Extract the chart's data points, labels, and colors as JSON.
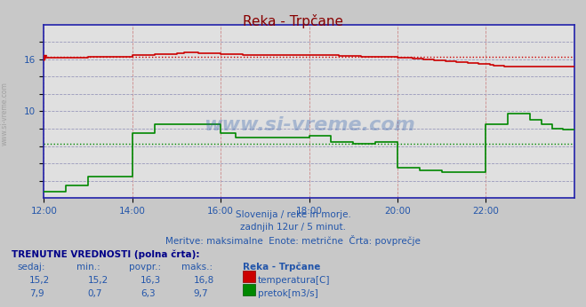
{
  "title": "Reka - Trpčane",
  "bg_color": "#c8c8c8",
  "plot_bg_color": "#e0e0e0",
  "title_color": "#880000",
  "axis_color": "#2222aa",
  "grid_color_v": "#cc8888",
  "grid_color_h": "#9999bb",
  "temp_color": "#cc0000",
  "flow_color": "#008800",
  "avg_temp_color": "#cc0000",
  "avg_flow_color": "#008800",
  "text_color": "#2255aa",
  "watermark": "www.si-vreme.com",
  "watermark_color": "#2255aa",
  "subtitle1": "Slovenija / reke in morje.",
  "subtitle2": "zadnjih 12ur / 5 minut.",
  "subtitle3": "Meritve: maksimalne  Enote: metrične  Črta: povprečje",
  "footer_header": "TRENUTNE VREDNOSTI (polna črta):",
  "footer_cols": [
    "sedaj:",
    "min.:",
    "povpr.:",
    "maks.:",
    "Reka - Trpčane"
  ],
  "footer_temp": [
    "15,2",
    "15,2",
    "16,3",
    "16,8",
    "temperatura[C]"
  ],
  "footer_flow": [
    "7,9",
    "0,7",
    "6,3",
    "9,7",
    "pretok[m3/s]"
  ],
  "xlim": [
    0,
    144
  ],
  "ylim": [
    0,
    20
  ],
  "temp_avg": 16.3,
  "flow_avg": 6.3,
  "xtick_labels": [
    "12:00",
    "14:00",
    "16:00",
    "18:00",
    "20:00",
    "22:00"
  ],
  "xtick_pos": [
    0,
    24,
    48,
    72,
    96,
    120
  ],
  "ytick_vals": [
    2,
    4,
    6,
    8,
    10,
    12,
    14,
    16,
    18
  ],
  "temp_data": [
    [
      0,
      16.2
    ],
    [
      6,
      16.2
    ],
    [
      12,
      16.3
    ],
    [
      18,
      16.3
    ],
    [
      24,
      16.5
    ],
    [
      30,
      16.6
    ],
    [
      36,
      16.7
    ],
    [
      38,
      16.8
    ],
    [
      42,
      16.7
    ],
    [
      48,
      16.6
    ],
    [
      54,
      16.5
    ],
    [
      72,
      16.5
    ],
    [
      80,
      16.4
    ],
    [
      86,
      16.3
    ],
    [
      96,
      16.2
    ],
    [
      100,
      16.1
    ],
    [
      103,
      16.0
    ],
    [
      106,
      15.9
    ],
    [
      109,
      15.8
    ],
    [
      112,
      15.7
    ],
    [
      115,
      15.6
    ],
    [
      118,
      15.5
    ],
    [
      120,
      15.5
    ],
    [
      121,
      15.4
    ],
    [
      122,
      15.3
    ],
    [
      125,
      15.2
    ],
    [
      144,
      15.2
    ]
  ],
  "flow_data": [
    [
      0,
      0.7
    ],
    [
      5,
      0.7
    ],
    [
      6,
      1.5
    ],
    [
      11,
      1.5
    ],
    [
      12,
      2.5
    ],
    [
      23,
      2.5
    ],
    [
      24,
      7.5
    ],
    [
      29,
      7.5
    ],
    [
      30,
      8.5
    ],
    [
      47,
      8.5
    ],
    [
      48,
      7.5
    ],
    [
      51,
      7.5
    ],
    [
      52,
      7.0
    ],
    [
      71,
      7.0
    ],
    [
      72,
      7.2
    ],
    [
      77,
      7.2
    ],
    [
      78,
      6.5
    ],
    [
      83,
      6.5
    ],
    [
      84,
      6.3
    ],
    [
      89,
      6.3
    ],
    [
      90,
      6.5
    ],
    [
      95,
      6.5
    ],
    [
      96,
      3.5
    ],
    [
      101,
      3.5
    ],
    [
      102,
      3.2
    ],
    [
      107,
      3.2
    ],
    [
      108,
      3.0
    ],
    [
      119,
      3.0
    ],
    [
      120,
      8.5
    ],
    [
      125,
      8.5
    ],
    [
      126,
      9.7
    ],
    [
      131,
      9.7
    ],
    [
      132,
      9.0
    ],
    [
      134,
      9.0
    ],
    [
      135,
      8.5
    ],
    [
      137,
      8.5
    ],
    [
      138,
      8.0
    ],
    [
      140,
      8.0
    ],
    [
      141,
      7.9
    ],
    [
      144,
      7.9
    ]
  ]
}
